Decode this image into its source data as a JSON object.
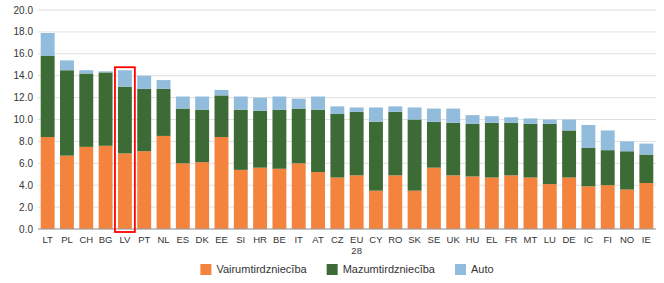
{
  "chart_data": {
    "type": "bar",
    "stacked": true,
    "grid": true,
    "legend": "bottom",
    "categories": [
      "LT",
      "PL",
      "CH",
      "BG",
      "LV",
      "PT",
      "NL",
      "ES",
      "DK",
      "EE",
      "SI",
      "HR",
      "BE",
      "IT",
      "AT",
      "CZ",
      "EU\n28",
      "CY",
      "RO",
      "SK",
      "SE",
      "UK",
      "HU",
      "EL",
      "FR",
      "MT",
      "LU",
      "DE",
      "IC",
      "FI",
      "NO",
      "IE"
    ],
    "series": [
      {
        "name": "Vairumtirdzniecība",
        "color": "#F4833D",
        "values": [
          8.4,
          6.7,
          7.5,
          7.6,
          6.9,
          7.1,
          8.5,
          6.0,
          6.1,
          8.4,
          5.4,
          5.6,
          5.5,
          6.0,
          5.2,
          4.7,
          4.9,
          3.5,
          4.9,
          3.5,
          5.6,
          4.9,
          4.8,
          4.7,
          4.9,
          4.7,
          4.1,
          4.7,
          3.9,
          4.0,
          3.6,
          4.2
        ]
      },
      {
        "name": "Mazumtirdzniecība",
        "color": "#3D6B35",
        "values": [
          7.4,
          7.8,
          6.7,
          6.7,
          6.1,
          5.7,
          4.3,
          5.0,
          4.8,
          3.8,
          5.5,
          5.2,
          5.4,
          5.0,
          5.7,
          5.8,
          5.8,
          6.3,
          5.8,
          6.5,
          4.2,
          4.8,
          4.8,
          5.0,
          4.8,
          4.9,
          5.5,
          4.3,
          3.5,
          3.2,
          3.5,
          2.6
        ]
      },
      {
        "name": "Auto",
        "color": "#92BCDC",
        "values": [
          2.1,
          0.9,
          0.3,
          0.1,
          1.5,
          1.2,
          0.8,
          1.1,
          1.2,
          0.5,
          1.2,
          1.2,
          1.2,
          0.9,
          1.2,
          0.7,
          0.4,
          1.3,
          0.5,
          1.1,
          1.2,
          1.3,
          0.8,
          0.6,
          0.5,
          0.5,
          0.4,
          1.0,
          2.1,
          1.8,
          0.9,
          1.0
        ]
      }
    ],
    "ylim": [
      0,
      20
    ],
    "yticks": [
      {
        "value": 0.0,
        "label": "0.0"
      },
      {
        "value": 2.0,
        "label": "2.0"
      },
      {
        "value": 4.0,
        "label": "4.0"
      },
      {
        "value": 6.0,
        "label": "6.0"
      },
      {
        "value": 8.0,
        "label": "8.0"
      },
      {
        "value": 10.0,
        "label": "10.0"
      },
      {
        "value": 12.0,
        "label": "12.0"
      },
      {
        "value": 14.0,
        "label": "14.0"
      },
      {
        "value": 16.0,
        "label": "16.0"
      },
      {
        "value": 18.0,
        "label": "18.0"
      },
      {
        "value": 20.0,
        "label": "20.0"
      }
    ]
  }
}
